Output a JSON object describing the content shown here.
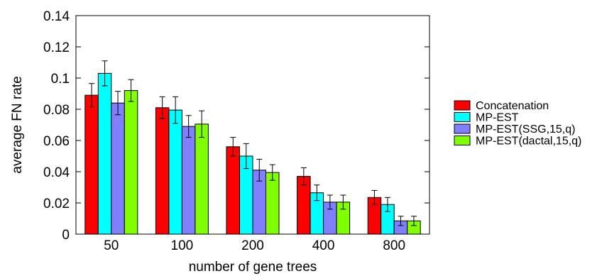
{
  "chart_data": {
    "type": "bar",
    "xlabel": "number of gene trees",
    "ylabel": "average FN rate",
    "categories": [
      "50",
      "100",
      "200",
      "400",
      "800"
    ],
    "ylim": [
      0,
      0.14
    ],
    "yticks": [
      "0",
      "0.02",
      "0.04",
      "0.06",
      "0.08",
      "0.1",
      "0.12",
      "0.14"
    ],
    "legend_position": "right",
    "error_bars": true,
    "series": [
      {
        "name": "Concatenation",
        "color": "#ff0000",
        "values": [
          0.089,
          0.081,
          0.056,
          0.037,
          0.0235
        ],
        "errors": [
          0.0075,
          0.007,
          0.006,
          0.0055,
          0.0045
        ]
      },
      {
        "name": "MP-EST",
        "color": "#00ffff",
        "values": [
          0.103,
          0.0795,
          0.05,
          0.0265,
          0.019
        ],
        "errors": [
          0.008,
          0.0085,
          0.008,
          0.005,
          0.0045
        ]
      },
      {
        "name": "MP-EST(SSG,15,q)",
        "color": "#7f7fff",
        "values": [
          0.084,
          0.069,
          0.041,
          0.0205,
          0.0085
        ],
        "errors": [
          0.0075,
          0.007,
          0.007,
          0.0045,
          0.003
        ]
      },
      {
        "name": "MP-EST(dactal,15,q)",
        "color": "#7fff00",
        "values": [
          0.092,
          0.0705,
          0.0395,
          0.0205,
          0.0085
        ],
        "errors": [
          0.007,
          0.0085,
          0.005,
          0.0045,
          0.003
        ]
      }
    ]
  }
}
